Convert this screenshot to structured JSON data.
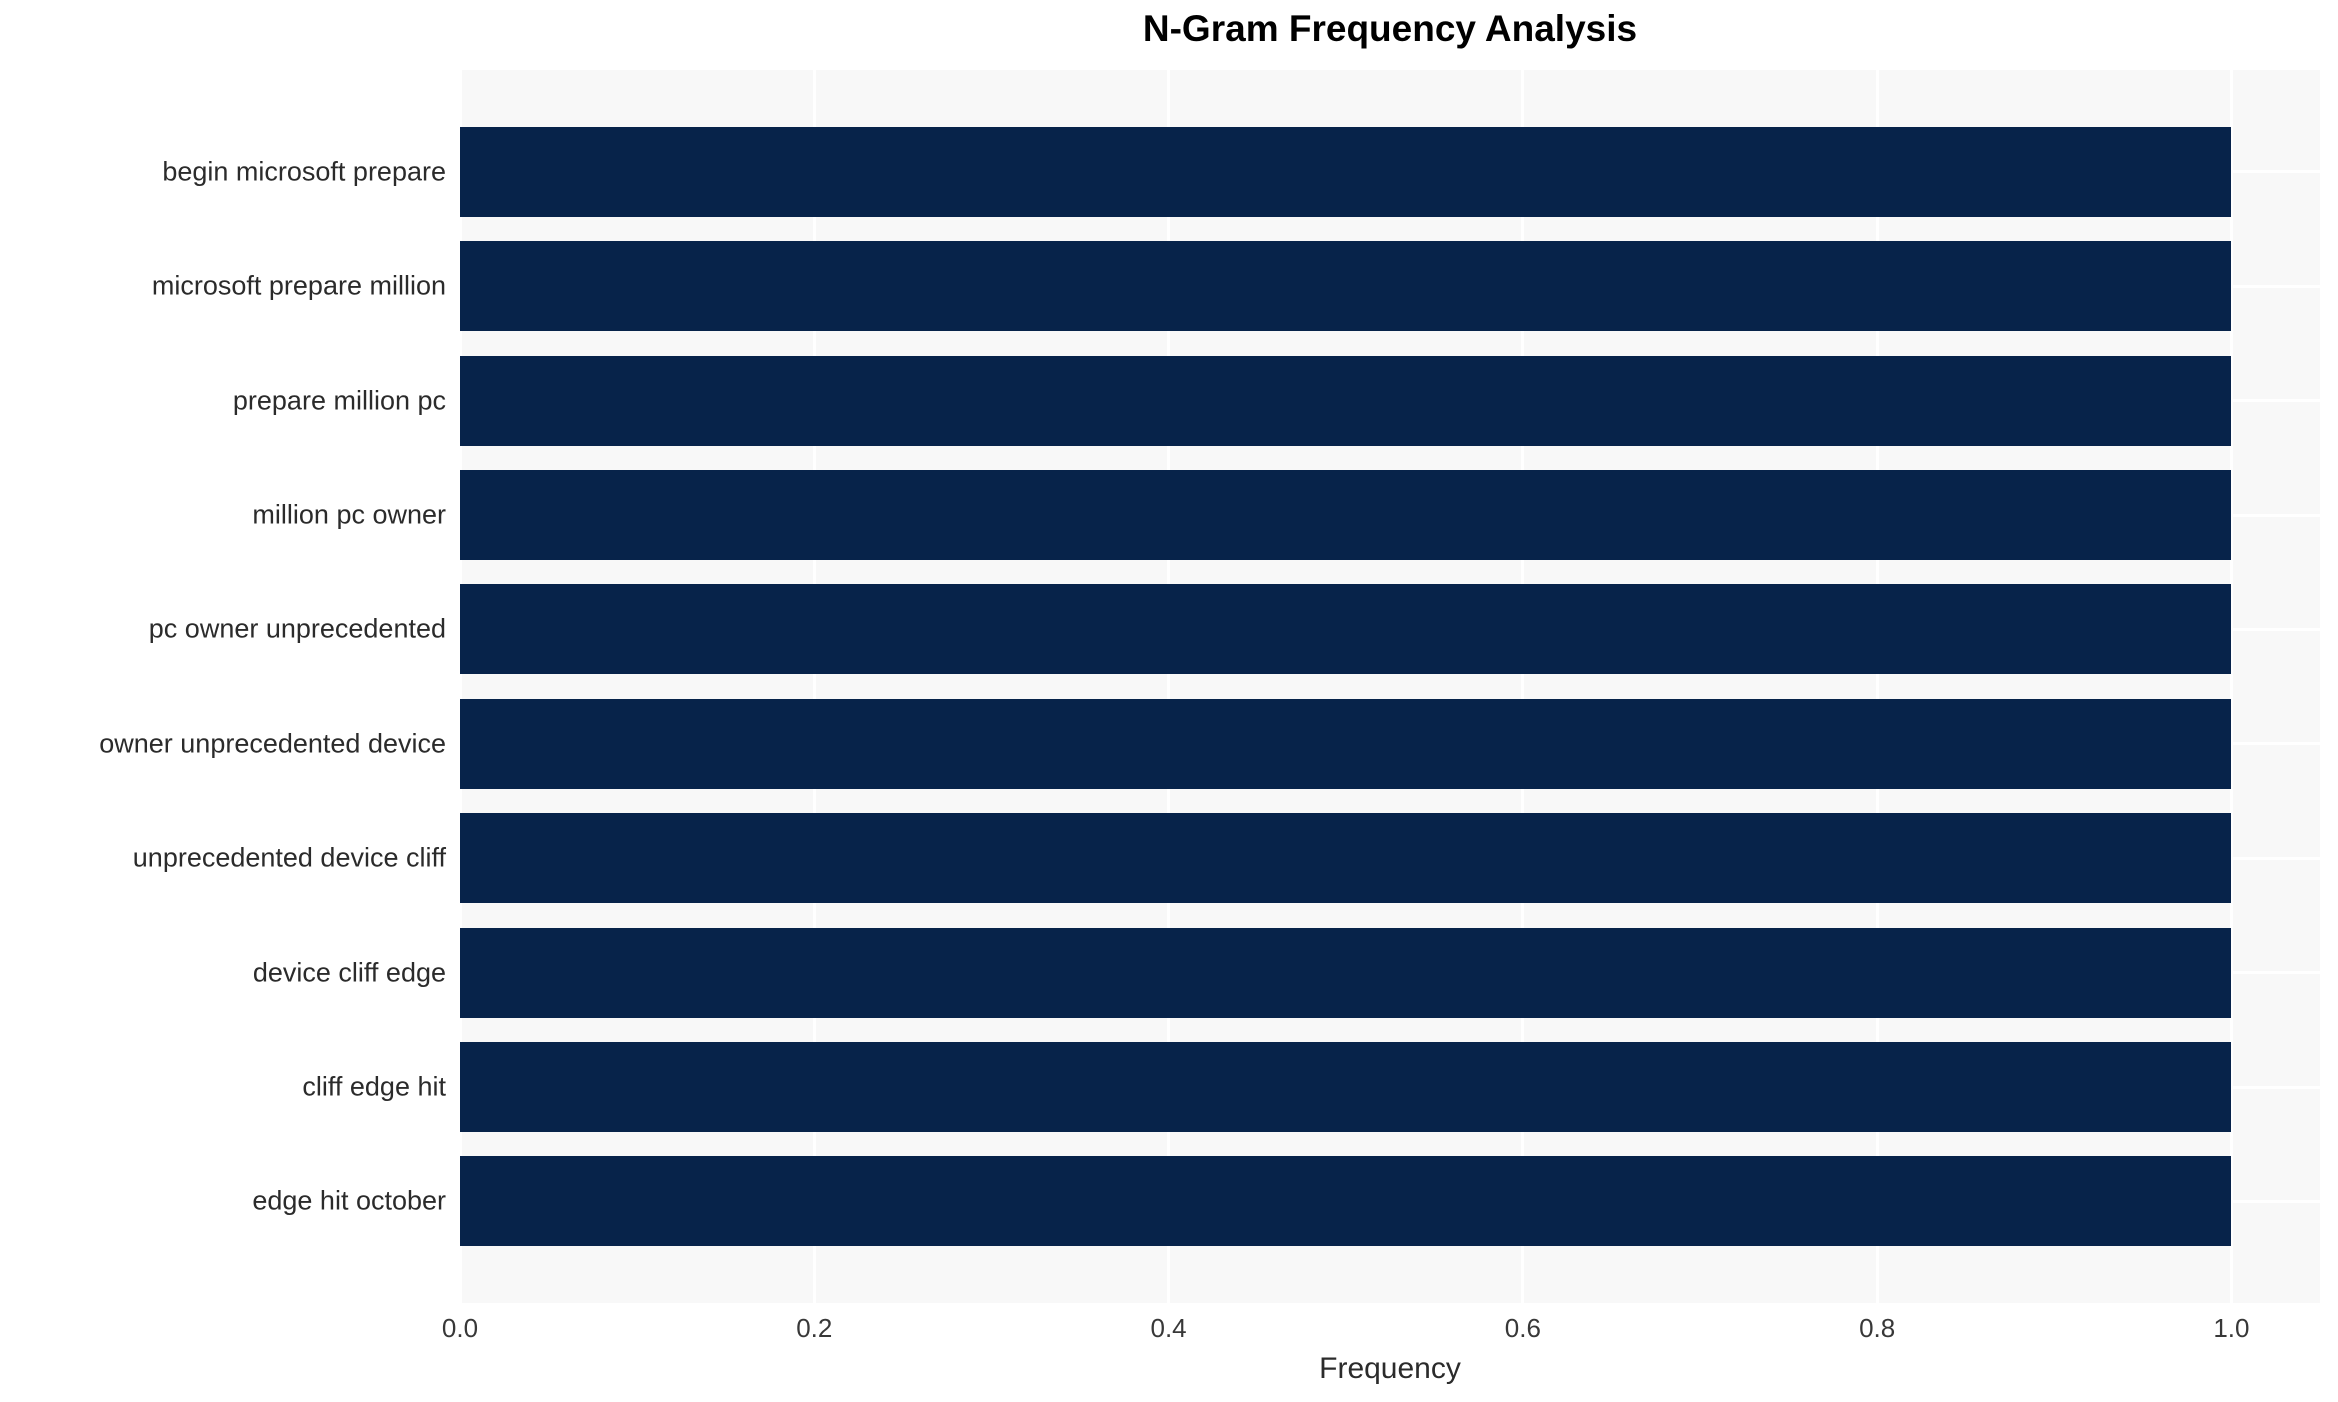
{
  "title": "N-Gram Frequency Analysis",
  "colors": {
    "bar": "#07234a",
    "plot_background": "#f8f8f8",
    "gridline": "#ffffff",
    "title_text": "#000000",
    "tick_text": "#383838"
  },
  "chart_data": {
    "type": "bar",
    "orientation": "horizontal",
    "title": "N-Gram Frequency Analysis",
    "xlabel": "Frequency",
    "ylabel": "",
    "categories": [
      "begin microsoft prepare",
      "microsoft prepare million",
      "prepare million pc",
      "million pc owner",
      "pc owner unprecedented",
      "owner unprecedented device",
      "unprecedented device cliff",
      "device cliff edge",
      "cliff edge hit",
      "edge hit october"
    ],
    "values": [
      1.0,
      1.0,
      1.0,
      1.0,
      1.0,
      1.0,
      1.0,
      1.0,
      1.0,
      1.0
    ],
    "xlim": [
      0,
      1.05
    ],
    "xticks": [
      0.0,
      0.2,
      0.4,
      0.6,
      0.8,
      1.0
    ],
    "xtick_labels": [
      "0.0",
      "0.2",
      "0.4",
      "0.6",
      "0.8",
      "1.0"
    ],
    "grid": true,
    "legend": false
  }
}
